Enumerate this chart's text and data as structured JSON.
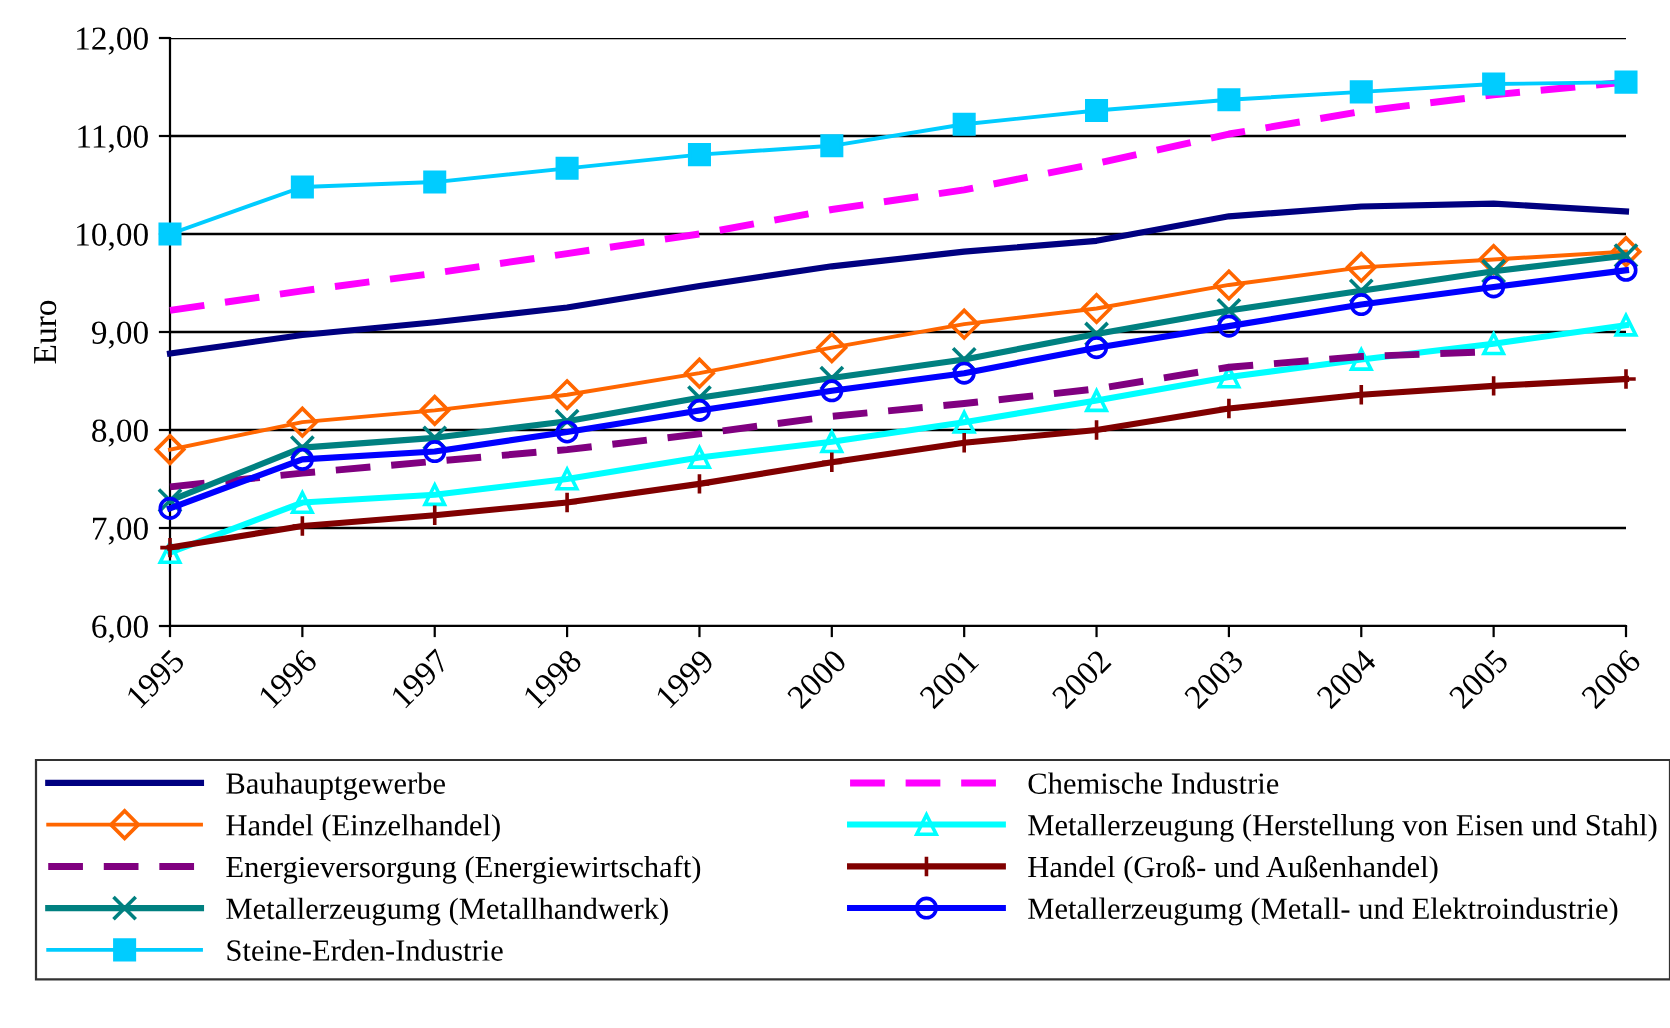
{
  "chart_data": {
    "type": "line",
    "ylabel": "Euro",
    "x": [
      1995,
      1996,
      1997,
      1998,
      1999,
      2000,
      2001,
      2002,
      2003,
      2004,
      2005,
      2006
    ],
    "xlim": [
      1995,
      2006
    ],
    "xticks": [
      1995,
      1996,
      1997,
      1998,
      1999,
      2000,
      2001,
      2002,
      2003,
      2004,
      2005,
      2006
    ],
    "ylim": [
      6,
      12
    ],
    "yticks": [
      {
        "value": 6,
        "label": "6,00"
      },
      {
        "value": 7,
        "label": "7,00"
      },
      {
        "value": 8,
        "label": "8,00"
      },
      {
        "value": 9,
        "label": "9,00"
      },
      {
        "value": 10,
        "label": "10,00"
      },
      {
        "value": 11,
        "label": "11,00"
      },
      {
        "value": 12,
        "label": "12,00"
      }
    ],
    "grid": "y",
    "legend": "bottom",
    "series": [
      {
        "name": "Bauhauptgewerbe",
        "color": "#000080",
        "marker": "none",
        "line_style": "solid",
        "values": [
          8.78,
          8.97,
          9.1,
          9.25,
          9.47,
          9.67,
          9.82,
          9.93,
          10.18,
          10.28,
          10.31,
          10.23
        ]
      },
      {
        "name": "Chemische Industrie",
        "color": "#ff00ff",
        "marker": "none",
        "line_style": "dashed",
        "values": [
          9.22,
          9.42,
          9.6,
          9.8,
          10.0,
          10.25,
          10.45,
          10.72,
          11.02,
          11.25,
          11.42,
          11.55
        ]
      },
      {
        "name": "Handel (Einzelhandel)",
        "color": "#ff6600",
        "marker": "diamond",
        "line_style": "solid",
        "values": [
          7.8,
          8.08,
          8.2,
          8.36,
          8.58,
          8.84,
          9.08,
          9.24,
          9.48,
          9.66,
          9.74,
          9.82
        ]
      },
      {
        "name": "Metallerzeugung (Herstellung von Eisen und Stahl)",
        "color": "#00ffff",
        "marker": "triangle",
        "line_style": "solid",
        "values": [
          6.75,
          7.26,
          7.34,
          7.5,
          7.72,
          7.88,
          8.08,
          8.3,
          8.54,
          8.72,
          8.88,
          9.07
        ]
      },
      {
        "name": "Energieversorgung (Energiewirtschaft)",
        "color": "#800080",
        "marker": "none",
        "line_style": "dashed",
        "values": [
          7.42,
          7.56,
          7.68,
          7.8,
          7.96,
          8.14,
          8.27,
          8.42,
          8.64,
          8.75,
          8.8,
          null
        ]
      },
      {
        "name": "Handel (Groß- und Außenhandel)",
        "color": "#800000",
        "marker": "cross",
        "line_style": "solid",
        "values": [
          6.8,
          7.02,
          7.13,
          7.26,
          7.45,
          7.67,
          7.87,
          8.0,
          8.22,
          8.36,
          8.45,
          8.52
        ]
      },
      {
        "name": "Metallerzeugumg (Metallhandwerk)",
        "color": "#008080",
        "marker": "x",
        "line_style": "solid",
        "values": [
          7.28,
          7.82,
          7.92,
          8.09,
          8.33,
          8.53,
          8.72,
          8.98,
          9.22,
          9.42,
          9.62,
          9.78
        ]
      },
      {
        "name": "Metallerzeugumg (Metall- und Elektroindustrie)",
        "color": "#0000ff",
        "marker": "circle",
        "line_style": "solid",
        "values": [
          7.2,
          7.7,
          7.78,
          7.98,
          8.2,
          8.4,
          8.58,
          8.84,
          9.06,
          9.28,
          9.46,
          9.63
        ]
      },
      {
        "name": "Steine-Erden-Industrie",
        "color": "#00ccff",
        "marker": "square",
        "line_style": "solid",
        "values": [
          10.0,
          10.48,
          10.53,
          10.67,
          10.81,
          10.9,
          11.12,
          11.26,
          11.37,
          11.45,
          11.53,
          11.55
        ]
      }
    ]
  }
}
